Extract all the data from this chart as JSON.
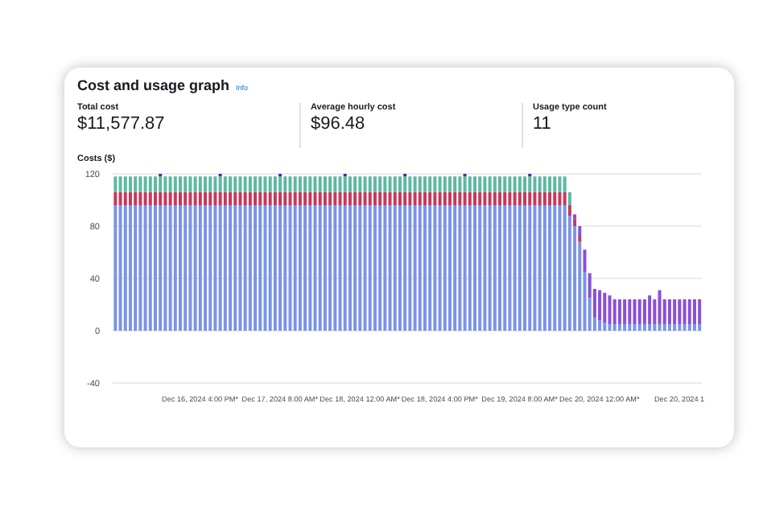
{
  "chart_data": {
    "type": "bar",
    "title": "Cost and usage graph",
    "ylabel": "Costs ($)",
    "annotations": [
      "Info",
      "Total cost",
      "$11,577.87",
      "Average hourly cost",
      "$96.48",
      "Usage type count",
      "11"
    ],
    "categories": [
      null,
      null,
      null,
      null,
      null,
      null,
      null,
      null,
      null,
      null,
      null,
      null,
      null,
      null,
      null,
      null,
      null,
      "Dec 16, 2024 4:00 PM*",
      null,
      null,
      null,
      null,
      null,
      null,
      null,
      null,
      null,
      null,
      null,
      null,
      null,
      null,
      null,
      "Dec 17, 2024 8:00 AM*",
      null,
      null,
      null,
      null,
      null,
      null,
      null,
      null,
      null,
      null,
      null,
      null,
      null,
      null,
      null,
      "Dec 18, 2024 12:00 AM*",
      null,
      null,
      null,
      null,
      null,
      null,
      null,
      null,
      null,
      null,
      null,
      null,
      null,
      null,
      null,
      "Dec 18, 2024 4:00 PM*",
      null,
      null,
      null,
      null,
      null,
      null,
      null,
      null,
      null,
      null,
      null,
      null,
      null,
      null,
      null,
      "Dec 19, 2024 8:00 AM*",
      null,
      null,
      null,
      null,
      null,
      null,
      null,
      null,
      null,
      null,
      null,
      null,
      null,
      null,
      null,
      "Dec 20, 2024 12:00 AM*",
      null,
      null,
      null,
      null,
      null,
      null,
      null,
      null,
      null,
      null,
      null,
      null,
      null,
      null,
      null,
      "Dec 20, 2024 1",
      null,
      null,
      null,
      null
    ],
    "stacked": true,
    "ylim": [
      -40,
      120
    ],
    "yticks": [
      -40,
      0,
      40,
      80,
      120
    ],
    "grid": "y",
    "legend": false,
    "series": [
      {
        "color": "#7b93e8",
        "values": [
          96,
          96,
          96,
          96,
          96,
          96,
          96,
          96,
          96,
          96,
          96,
          96,
          96,
          96,
          96,
          96,
          96,
          96,
          96,
          96,
          96,
          96,
          96,
          96,
          96,
          96,
          96,
          96,
          96,
          96,
          96,
          96,
          96,
          96,
          96,
          96,
          96,
          96,
          96,
          96,
          96,
          96,
          96,
          96,
          96,
          96,
          96,
          96,
          96,
          96,
          96,
          96,
          96,
          96,
          96,
          96,
          96,
          96,
          96,
          96,
          96,
          96,
          96,
          96,
          96,
          96,
          96,
          96,
          96,
          96,
          96,
          96,
          96,
          96,
          96,
          96,
          96,
          96,
          96,
          96,
          96,
          96,
          96,
          96,
          96,
          96,
          96,
          96,
          96,
          96,
          96,
          88,
          80,
          68,
          45,
          25,
          10,
          8,
          6,
          5,
          5,
          5,
          5,
          5,
          5,
          5,
          5,
          5,
          5,
          5,
          5,
          5,
          5,
          5,
          5,
          5,
          5,
          5
        ]
      },
      {
        "color": "#c7385a",
        "values": [
          10,
          10,
          10,
          10,
          10,
          10,
          10,
          10,
          10,
          10,
          10,
          10,
          10,
          10,
          10,
          10,
          10,
          10,
          10,
          10,
          10,
          10,
          10,
          10,
          10,
          10,
          10,
          10,
          10,
          10,
          10,
          10,
          10,
          10,
          10,
          10,
          10,
          10,
          10,
          10,
          10,
          10,
          10,
          10,
          10,
          10,
          10,
          10,
          10,
          10,
          10,
          10,
          10,
          10,
          10,
          10,
          10,
          10,
          10,
          10,
          10,
          10,
          10,
          10,
          10,
          10,
          10,
          10,
          10,
          10,
          10,
          10,
          10,
          10,
          10,
          10,
          10,
          10,
          10,
          10,
          10,
          10,
          10,
          10,
          10,
          10,
          10,
          10,
          10,
          10,
          10,
          8,
          5,
          4,
          0,
          0,
          0,
          0,
          0,
          0,
          0,
          0,
          0,
          0,
          0,
          0,
          0,
          0,
          0,
          0,
          0,
          0,
          0,
          0,
          0,
          0,
          0,
          0
        ]
      },
      {
        "color": "#5fb8a0",
        "values": [
          12,
          12,
          12,
          12,
          12,
          12,
          12,
          12,
          12,
          12,
          12,
          12,
          12,
          12,
          12,
          12,
          12,
          12,
          12,
          12,
          12,
          12,
          12,
          12,
          12,
          12,
          12,
          12,
          12,
          12,
          12,
          12,
          12,
          12,
          12,
          12,
          12,
          12,
          12,
          12,
          12,
          12,
          12,
          12,
          12,
          12,
          12,
          12,
          12,
          12,
          12,
          12,
          12,
          12,
          12,
          12,
          12,
          12,
          12,
          12,
          12,
          12,
          12,
          12,
          12,
          12,
          12,
          12,
          12,
          12,
          12,
          12,
          12,
          12,
          12,
          12,
          12,
          12,
          12,
          12,
          12,
          12,
          12,
          12,
          12,
          12,
          12,
          12,
          12,
          12,
          12,
          10,
          0,
          0,
          0,
          0,
          0,
          0,
          0,
          0,
          0,
          0,
          0,
          0,
          0,
          0,
          0,
          0,
          0,
          0,
          0,
          0,
          0,
          0,
          0,
          0,
          0,
          0
        ]
      },
      {
        "color": "#2b3f9e",
        "values": [
          0,
          0,
          0,
          0,
          0,
          0,
          0,
          0,
          0,
          2,
          0,
          0,
          0,
          0,
          0,
          0,
          0,
          0,
          0,
          0,
          0,
          2,
          0,
          0,
          0,
          0,
          0,
          0,
          0,
          0,
          0,
          0,
          0,
          2,
          0,
          0,
          0,
          0,
          0,
          0,
          0,
          0,
          0,
          0,
          0,
          0,
          2,
          0,
          0,
          0,
          0,
          0,
          0,
          0,
          0,
          0,
          0,
          0,
          2,
          0,
          0,
          0,
          0,
          0,
          0,
          0,
          0,
          0,
          0,
          0,
          2,
          0,
          0,
          0,
          0,
          0,
          0,
          0,
          0,
          0,
          0,
          0,
          0,
          2,
          0,
          0,
          0,
          0,
          0,
          0,
          0,
          0,
          0,
          0,
          0,
          0,
          0,
          0,
          0,
          0,
          0,
          0,
          0,
          0,
          0,
          0,
          0,
          0,
          0,
          0,
          0,
          0,
          0,
          0,
          0,
          0,
          0,
          0
        ]
      },
      {
        "color": "#8a4fd6",
        "values": [
          0,
          0,
          0,
          0,
          0,
          0,
          0,
          0,
          0,
          0,
          0,
          0,
          0,
          0,
          0,
          0,
          0,
          0,
          0,
          0,
          0,
          0,
          0,
          0,
          0,
          0,
          0,
          0,
          0,
          0,
          0,
          0,
          0,
          0,
          0,
          0,
          0,
          0,
          0,
          0,
          0,
          0,
          0,
          0,
          0,
          0,
          0,
          0,
          0,
          0,
          0,
          0,
          0,
          0,
          0,
          0,
          0,
          0,
          0,
          0,
          0,
          0,
          0,
          0,
          0,
          0,
          0,
          0,
          0,
          0,
          0,
          0,
          0,
          0,
          0,
          0,
          0,
          0,
          0,
          0,
          0,
          0,
          0,
          0,
          0,
          0,
          0,
          0,
          0,
          0,
          0,
          0,
          4,
          8,
          17,
          19,
          22,
          23,
          23,
          22,
          19,
          19,
          19,
          19,
          19,
          19,
          19,
          22,
          19,
          26,
          19,
          19,
          19,
          19,
          19,
          19,
          19,
          19
        ]
      }
    ]
  }
}
